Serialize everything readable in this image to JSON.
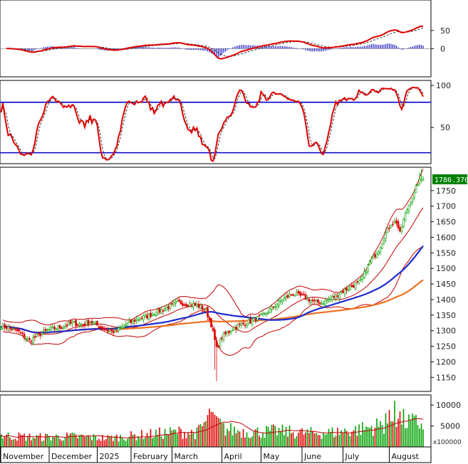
{
  "colors": {
    "up": "#00a000",
    "down": "#e00000",
    "macd": "#e00000",
    "macd_signal": "#333333",
    "macd_hist_pos": "#2020c0",
    "macd_hist_neg": "#2020c0",
    "rsi": "#e00000",
    "rsi_signal": "#333333",
    "rsi_levels": "#0000cc",
    "bollinger": "#c00000",
    "ma_blue": "#1a2ad0",
    "ma_orange": "#f07020",
    "volume_ma": "#c00000",
    "price_tag_bg": "#008000",
    "frame": "#000000"
  },
  "chart_data": [
    {
      "type": "line",
      "panel": "macd",
      "yticks": [
        0,
        50
      ],
      "ylim": [
        -78,
        134
      ],
      "grid": false,
      "series_hint": [
        "macd-line",
        "signal-line",
        "histogram"
      ]
    },
    {
      "type": "line",
      "panel": "stochastic",
      "yticks": [
        50,
        100
      ],
      "levels": [
        20,
        80
      ],
      "ylim": [
        7,
        106
      ],
      "grid": false
    },
    {
      "type": "candlestick",
      "panel": "price",
      "yticks": [
        1150,
        1200,
        1250,
        1300,
        1350,
        1400,
        1450,
        1500,
        1550,
        1600,
        1650,
        1700,
        1750
      ],
      "ylim": [
        1105,
        1825
      ],
      "last_price_label": "1786.370",
      "last_price": 1786.37,
      "grid": false,
      "anchors": [
        [
          0,
          1318
        ],
        [
          10,
          1296
        ],
        [
          16,
          1268
        ],
        [
          22,
          1290
        ],
        [
          28,
          1305
        ],
        [
          34,
          1312
        ],
        [
          40,
          1324
        ],
        [
          46,
          1320
        ],
        [
          50,
          1330
        ],
        [
          55,
          1314
        ],
        [
          60,
          1300
        ],
        [
          64,
          1296
        ],
        [
          70,
          1318
        ],
        [
          76,
          1336
        ],
        [
          82,
          1347
        ],
        [
          88,
          1361
        ],
        [
          94,
          1376
        ],
        [
          100,
          1391
        ],
        [
          104,
          1386
        ],
        [
          110,
          1382
        ],
        [
          115,
          1366
        ],
        [
          118,
          1320
        ],
        [
          121,
          1242
        ],
        [
          124,
          1280
        ],
        [
          130,
          1306
        ],
        [
          136,
          1322
        ],
        [
          142,
          1334
        ],
        [
          148,
          1352
        ],
        [
          152,
          1372
        ],
        [
          158,
          1401
        ],
        [
          164,
          1418
        ],
        [
          170,
          1408
        ],
        [
          176,
          1392
        ],
        [
          180,
          1390
        ],
        [
          185,
          1402
        ],
        [
          190,
          1420
        ],
        [
          196,
          1440
        ],
        [
          202,
          1458
        ],
        [
          207,
          1520
        ],
        [
          212,
          1560
        ],
        [
          216,
          1612
        ],
        [
          219,
          1645
        ],
        [
          222,
          1650
        ],
        [
          224,
          1612
        ],
        [
          226,
          1655
        ],
        [
          228,
          1690
        ],
        [
          230,
          1720
        ],
        [
          232,
          1740
        ],
        [
          234,
          1775
        ],
        [
          236,
          1786.37
        ]
      ]
    },
    {
      "type": "bar",
      "panel": "volume",
      "yticks": [
        5000,
        10000
      ],
      "ylim": [
        0,
        12400
      ],
      "unit_label": "x100000",
      "grid": false,
      "anchors": [
        [
          0,
          2700
        ],
        [
          20,
          2300
        ],
        [
          40,
          2500
        ],
        [
          60,
          2100
        ],
        [
          80,
          2900
        ],
        [
          100,
          3600
        ],
        [
          110,
          3300
        ],
        [
          118,
          7600
        ],
        [
          125,
          4300
        ],
        [
          140,
          3500
        ],
        [
          155,
          3800
        ],
        [
          170,
          3300
        ],
        [
          185,
          3400
        ],
        [
          200,
          4100
        ],
        [
          215,
          5300
        ],
        [
          222,
          7400
        ],
        [
          228,
          5800
        ],
        [
          236,
          5600
        ]
      ]
    }
  ],
  "x_axis": {
    "months": [
      {
        "label": "November",
        "at": 0
      },
      {
        "label": "December",
        "at": 27
      },
      {
        "label": "2025",
        "at": 54
      },
      {
        "label": "February",
        "at": 73
      },
      {
        "label": "March",
        "at": 96
      },
      {
        "label": "April",
        "at": 124
      },
      {
        "label": "May",
        "at": 146
      },
      {
        "label": "June",
        "at": 169
      },
      {
        "label": "July",
        "at": 192
      },
      {
        "label": "August",
        "at": 218
      }
    ],
    "bar_count": 238
  }
}
